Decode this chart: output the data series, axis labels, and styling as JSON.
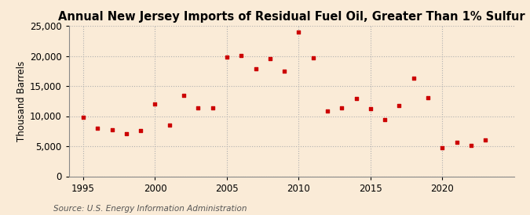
{
  "title": "Annual New Jersey Imports of Residual Fuel Oil, Greater Than 1% Sulfur",
  "ylabel": "Thousand Barrels",
  "source": "Source: U.S. Energy Information Administration",
  "background_color": "#faebd7",
  "marker_color": "#cc0000",
  "years": [
    1995,
    1996,
    1997,
    1998,
    1999,
    2000,
    2001,
    2002,
    2003,
    2004,
    2005,
    2006,
    2007,
    2008,
    2009,
    2010,
    2011,
    2012,
    2013,
    2014,
    2015,
    2016,
    2017,
    2018,
    2019,
    2020,
    2021,
    2022,
    2023
  ],
  "values": [
    9800,
    8000,
    7700,
    7100,
    7600,
    12000,
    8500,
    13500,
    11400,
    11400,
    19800,
    20100,
    17900,
    19500,
    17500,
    23900,
    19700,
    10800,
    11400,
    12900,
    11200,
    9400,
    11800,
    16300,
    13000,
    4800,
    5700,
    5100,
    6100
  ],
  "xlim": [
    1994,
    2025
  ],
  "ylim": [
    0,
    25000
  ],
  "yticks": [
    0,
    5000,
    10000,
    15000,
    20000,
    25000
  ],
  "xticks": [
    1995,
    2000,
    2005,
    2010,
    2015,
    2020
  ],
  "grid_color": "#b0b0b0",
  "title_fontsize": 10.5,
  "axis_fontsize": 8.5,
  "source_fontsize": 7.5,
  "marker_size": 12
}
